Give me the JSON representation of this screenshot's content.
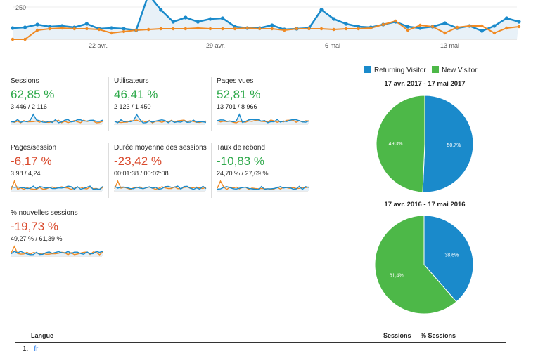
{
  "top_chart": {
    "y_tick_label": "250",
    "x_tick_labels": [
      "22 avr.",
      "29 avr.",
      "6 mai",
      "13 mai"
    ],
    "colors": {
      "current": "#1a8acb",
      "previous": "#f08a24"
    }
  },
  "metrics": [
    {
      "name": "Sessions",
      "change": "62,85 %",
      "direction": "positive",
      "compare": "3 446 / 2 116"
    },
    {
      "name": "Utilisateurs",
      "change": "46,41 %",
      "direction": "positive",
      "compare": "2 123 / 1 450"
    },
    {
      "name": "Pages vues",
      "change": "52,81 %",
      "direction": "positive",
      "compare": "13 701 / 8 966"
    },
    {
      "name": "Pages/session",
      "change": "-6,17 %",
      "direction": "negative",
      "compare": "3,98 / 4,24"
    },
    {
      "name": "Durée moyenne des sessions",
      "change": "-23,42 %",
      "direction": "negative",
      "compare": "00:01:38 / 00:02:08"
    },
    {
      "name": "Taux de rebond",
      "change": "-10,83 %",
      "direction": "positive",
      "compare": "24,70 % / 27,69 %"
    },
    {
      "name": "% nouvelles sessions",
      "change": "-19,73 %",
      "direction": "negative",
      "compare": "49,27 % / 61,39 %"
    }
  ],
  "legend": {
    "returning": {
      "label": "Returning Visitor",
      "color": "#1a8acb"
    },
    "new": {
      "label": "New Visitor",
      "color": "#4db848"
    }
  },
  "chart_data": [
    {
      "type": "pie",
      "title": "17 avr. 2017 - 17 mai 2017",
      "slices": [
        {
          "label": "Returning Visitor",
          "value": 50.7,
          "value_label": "50,7%"
        },
        {
          "label": "New Visitor",
          "value": 49.3,
          "value_label": "49,3%"
        }
      ]
    },
    {
      "type": "pie",
      "title": "17 avr. 2016 - 17 mai 2016",
      "slices": [
        {
          "label": "Returning Visitor",
          "value": 38.6,
          "value_label": "38,6%"
        },
        {
          "label": "New Visitor",
          "value": 61.4,
          "value_label": "61,4%"
        }
      ]
    }
  ],
  "table": {
    "col_language": "Langue",
    "col_sessions": "Sessions",
    "col_pct_sessions": "% Sessions",
    "rows": [
      {
        "index": "1.",
        "language": "fr"
      }
    ]
  }
}
